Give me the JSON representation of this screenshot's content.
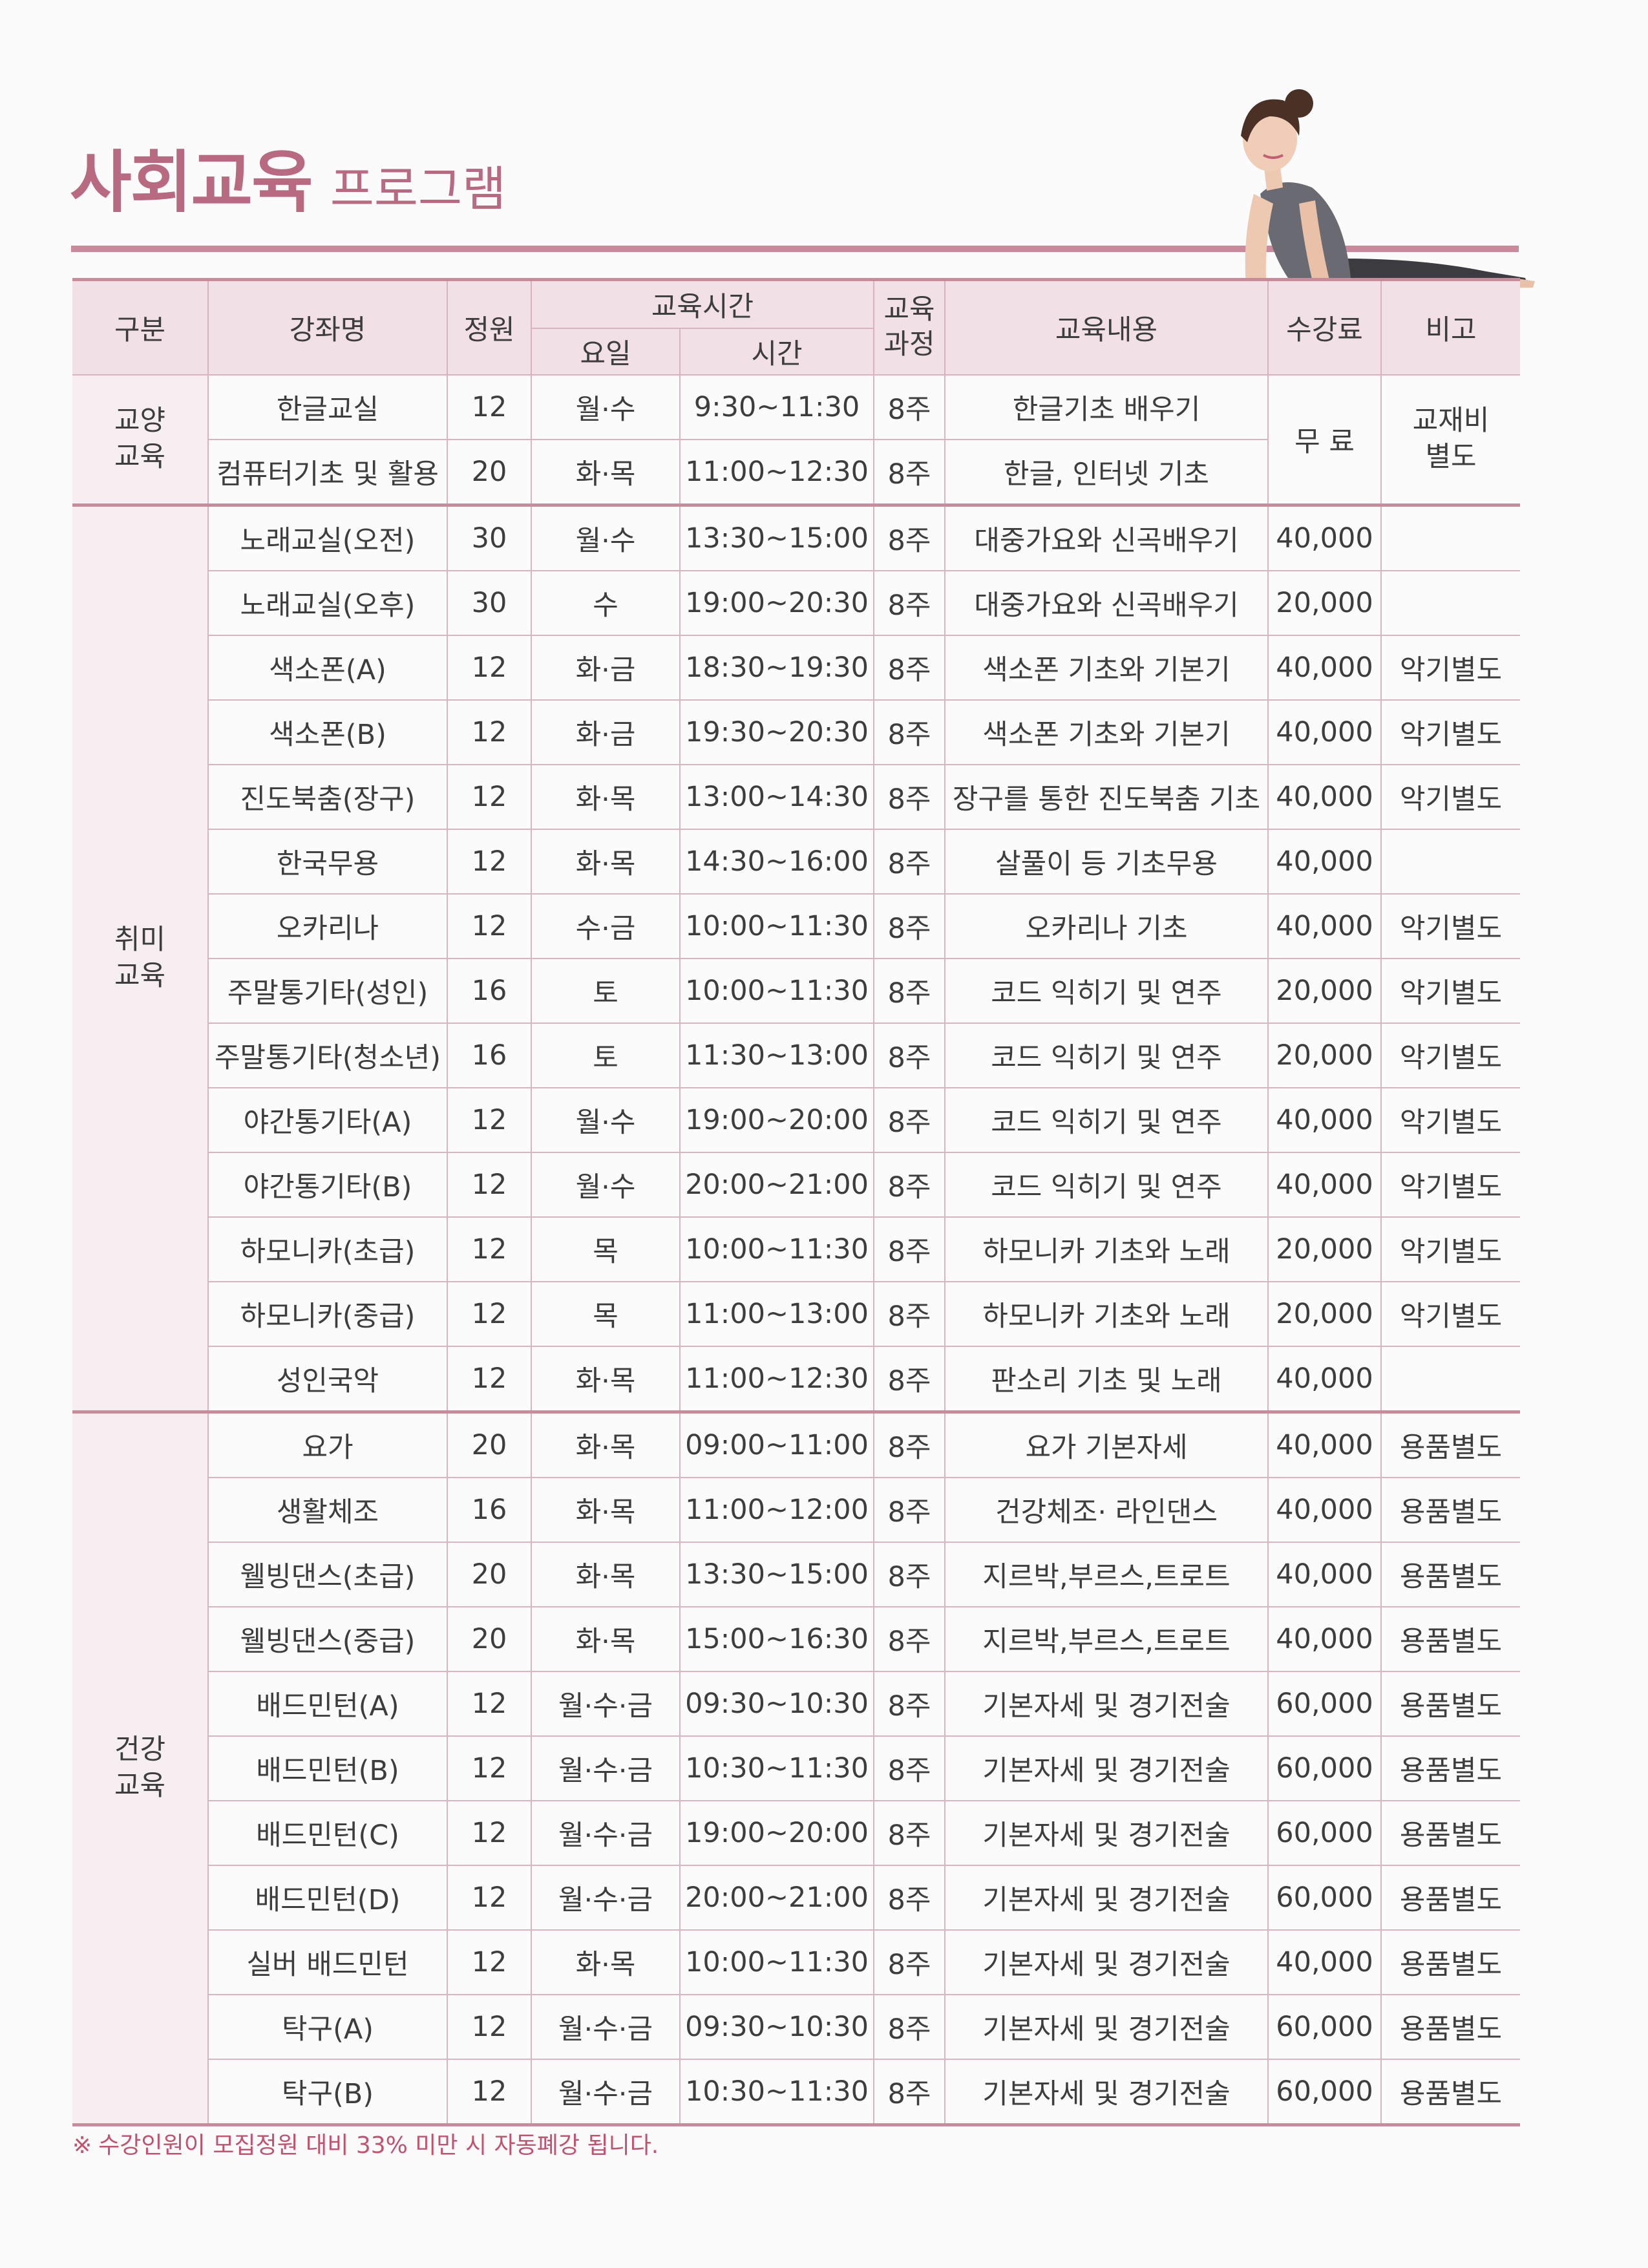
{
  "page": {
    "title": "사회교육",
    "subtitle": "프로그램",
    "footnote_mark": "※",
    "footnote": "수강인원이 모집정원 대비 33% 미만 시 자동폐강 됩니다.",
    "accent_color": "#b86a80"
  },
  "headers": {
    "category": "구분",
    "course": "강좌명",
    "capacity": "정원",
    "edu_time": "교육시간",
    "day": "요일",
    "time": "시간",
    "period": "교육\n과정",
    "content": "교육내용",
    "fee": "수강료",
    "note": "비고"
  },
  "sections": [
    {
      "category": "교양\n교육",
      "shared_fee": "무 료",
      "shared_note": "교재비\n별도",
      "rows": [
        {
          "course": "한글교실",
          "capacity": "12",
          "day": "월·수",
          "time": "9:30~11:30",
          "period": "8주",
          "content": "한글기초 배우기"
        },
        {
          "course": "컴퓨터기초 및 활용",
          "capacity": "20",
          "day": "화·목",
          "time": "11:00~12:30",
          "period": "8주",
          "content": "한글, 인터넷 기초"
        }
      ]
    },
    {
      "category": "취미\n교육",
      "rows": [
        {
          "course": "노래교실(오전)",
          "capacity": "30",
          "day": "월·수",
          "time": "13:30~15:00",
          "period": "8주",
          "content": "대중가요와 신곡배우기",
          "fee": "40,000",
          "note": ""
        },
        {
          "course": "노래교실(오후)",
          "capacity": "30",
          "day": "수",
          "time": "19:00~20:30",
          "period": "8주",
          "content": "대중가요와 신곡배우기",
          "fee": "20,000",
          "note": ""
        },
        {
          "course": "색소폰(A)",
          "capacity": "12",
          "day": "화·금",
          "time": "18:30~19:30",
          "period": "8주",
          "content": "색소폰 기초와 기본기",
          "fee": "40,000",
          "note": "악기별도"
        },
        {
          "course": "색소폰(B)",
          "capacity": "12",
          "day": "화·금",
          "time": "19:30~20:30",
          "period": "8주",
          "content": "색소폰 기초와 기본기",
          "fee": "40,000",
          "note": "악기별도"
        },
        {
          "course": "진도북춤(장구)",
          "capacity": "12",
          "day": "화·목",
          "time": "13:00~14:30",
          "period": "8주",
          "content": "장구를 통한 진도북춤 기초",
          "fee": "40,000",
          "note": "악기별도"
        },
        {
          "course": "한국무용",
          "capacity": "12",
          "day": "화·목",
          "time": "14:30~16:00",
          "period": "8주",
          "content": "살풀이 등 기초무용",
          "fee": "40,000",
          "note": ""
        },
        {
          "course": "오카리나",
          "capacity": "12",
          "day": "수·금",
          "time": "10:00~11:30",
          "period": "8주",
          "content": "오카리나 기초",
          "fee": "40,000",
          "note": "악기별도"
        },
        {
          "course": "주말통기타(성인)",
          "capacity": "16",
          "day": "토",
          "time": "10:00~11:30",
          "period": "8주",
          "content": "코드 익히기 및 연주",
          "fee": "20,000",
          "note": "악기별도"
        },
        {
          "course": "주말통기타(청소년)",
          "capacity": "16",
          "day": "토",
          "time": "11:30~13:00",
          "period": "8주",
          "content": "코드 익히기 및 연주",
          "fee": "20,000",
          "note": "악기별도"
        },
        {
          "course": "야간통기타(A)",
          "capacity": "12",
          "day": "월·수",
          "time": "19:00~20:00",
          "period": "8주",
          "content": "코드 익히기 및 연주",
          "fee": "40,000",
          "note": "악기별도"
        },
        {
          "course": "야간통기타(B)",
          "capacity": "12",
          "day": "월·수",
          "time": "20:00~21:00",
          "period": "8주",
          "content": "코드 익히기 및 연주",
          "fee": "40,000",
          "note": "악기별도"
        },
        {
          "course": "하모니카(초급)",
          "capacity": "12",
          "day": "목",
          "time": "10:00~11:30",
          "period": "8주",
          "content": "하모니카 기초와 노래",
          "fee": "20,000",
          "note": "악기별도"
        },
        {
          "course": "하모니카(중급)",
          "capacity": "12",
          "day": "목",
          "time": "11:00~13:00",
          "period": "8주",
          "content": "하모니카 기초와 노래",
          "fee": "20,000",
          "note": "악기별도"
        },
        {
          "course": "성인국악",
          "capacity": "12",
          "day": "화·목",
          "time": "11:00~12:30",
          "period": "8주",
          "content": "판소리 기초 및 노래",
          "fee": "40,000",
          "note": ""
        }
      ]
    },
    {
      "category": "건강\n교육",
      "rows": [
        {
          "course": "요가",
          "capacity": "20",
          "day": "화·목",
          "time": "09:00~11:00",
          "period": "8주",
          "content": "요가 기본자세",
          "fee": "40,000",
          "note": "용품별도"
        },
        {
          "course": "생활체조",
          "capacity": "16",
          "day": "화·목",
          "time": "11:00~12:00",
          "period": "8주",
          "content": "건강체조· 라인댄스",
          "fee": "40,000",
          "note": "용품별도"
        },
        {
          "course": "웰빙댄스(초급)",
          "capacity": "20",
          "day": "화·목",
          "time": "13:30~15:00",
          "period": "8주",
          "content": "지르박,부르스,트로트",
          "fee": "40,000",
          "note": "용품별도"
        },
        {
          "course": "웰빙댄스(중급)",
          "capacity": "20",
          "day": "화·목",
          "time": "15:00~16:30",
          "period": "8주",
          "content": "지르박,부르스,트로트",
          "fee": "40,000",
          "note": "용품별도"
        },
        {
          "course": "배드민턴(A)",
          "capacity": "12",
          "day": "월·수·금",
          "time": "09:30~10:30",
          "period": "8주",
          "content": "기본자세 및 경기전술",
          "fee": "60,000",
          "note": "용품별도"
        },
        {
          "course": "배드민턴(B)",
          "capacity": "12",
          "day": "월·수·금",
          "time": "10:30~11:30",
          "period": "8주",
          "content": "기본자세 및 경기전술",
          "fee": "60,000",
          "note": "용품별도"
        },
        {
          "course": "배드민턴(C)",
          "capacity": "12",
          "day": "월·수·금",
          "time": "19:00~20:00",
          "period": "8주",
          "content": "기본자세 및 경기전술",
          "fee": "60,000",
          "note": "용품별도"
        },
        {
          "course": "배드민턴(D)",
          "capacity": "12",
          "day": "월·수·금",
          "time": "20:00~21:00",
          "period": "8주",
          "content": "기본자세 및 경기전술",
          "fee": "60,000",
          "note": "용품별도"
        },
        {
          "course": "실버 배드민턴",
          "capacity": "12",
          "day": "화·목",
          "time": "10:00~11:30",
          "period": "8주",
          "content": "기본자세 및 경기전술",
          "fee": "40,000",
          "note": "용품별도"
        },
        {
          "course": "탁구(A)",
          "capacity": "12",
          "day": "월·수·금",
          "time": "09:30~10:30",
          "period": "8주",
          "content": "기본자세 및 경기전술",
          "fee": "60,000",
          "note": "용품별도"
        },
        {
          "course": "탁구(B)",
          "capacity": "12",
          "day": "월·수·금",
          "time": "10:30~11:30",
          "period": "8주",
          "content": "기본자세 및 경기전술",
          "fee": "60,000",
          "note": "용품별도"
        }
      ]
    }
  ]
}
